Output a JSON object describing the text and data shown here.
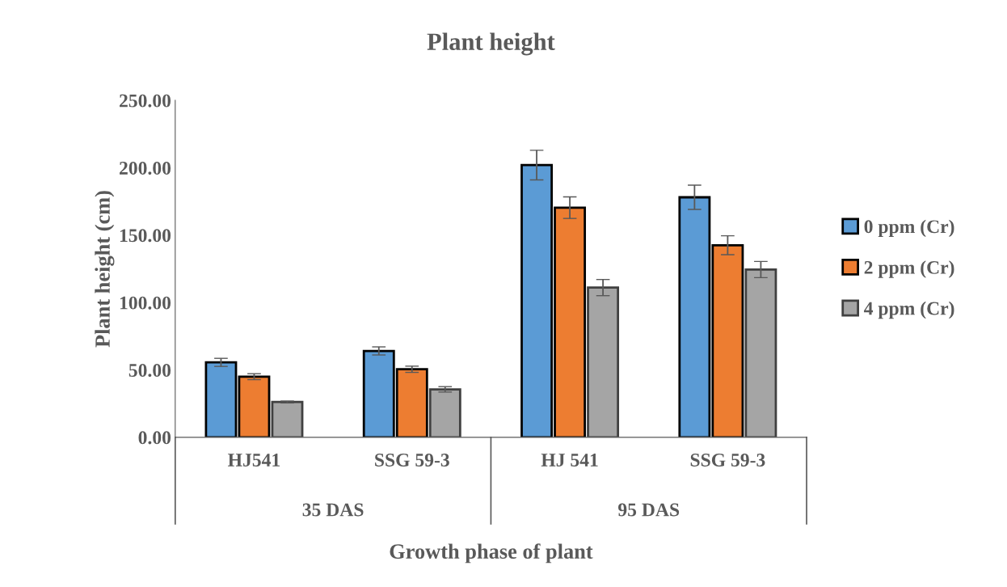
{
  "chart_data": {
    "type": "bar",
    "title": "Plant height",
    "xlabel": "Growth phase of plant",
    "ylabel": "Plant height (cm)",
    "categories": [
      "HJ541",
      "SSG 59-3",
      "HJ 541",
      "SSG 59-3"
    ],
    "annotations": [
      "35 DAS",
      "95 DAS"
    ],
    "series": [
      {
        "name": "0 ppm (Cr)",
        "color": "#5b9bd5",
        "values": [
          55.6,
          64.1,
          202.0,
          178.1
        ],
        "errors": [
          3,
          3,
          11,
          9
        ]
      },
      {
        "name": "2 ppm (Cr)",
        "color": "#ed7d31",
        "values": [
          45.0,
          50.5,
          170.4,
          142.5
        ],
        "errors": [
          2.2,
          2.3,
          8,
          7
        ]
      },
      {
        "name": "4 ppm (Cr)",
        "color": "#a5a5a5",
        "values": [
          26.2,
          35.6,
          111.1,
          124.5
        ],
        "errors": [
          0.7,
          2,
          6,
          6
        ]
      }
    ],
    "ylim": [
      0,
      250
    ],
    "yticks": [
      {
        "value": 0,
        "label": "0.00"
      },
      {
        "value": 50,
        "label": "50.00"
      },
      {
        "value": 100,
        "label": "100.00"
      },
      {
        "value": 150,
        "label": "150.00"
      },
      {
        "value": 200,
        "label": "200.00"
      },
      {
        "value": 250,
        "label": "250.00"
      }
    ],
    "grid": false,
    "legend": "right"
  }
}
